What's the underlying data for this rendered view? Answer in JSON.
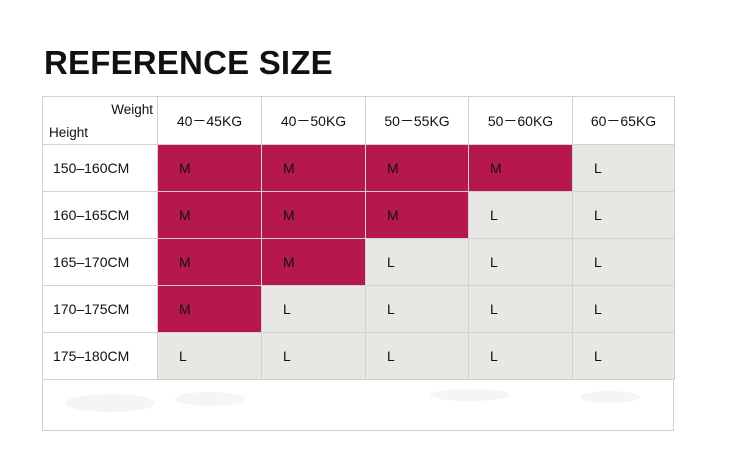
{
  "title": "REFERENCE SIZE",
  "table": {
    "corner": {
      "weight_label": "Weight",
      "height_label": "Height"
    },
    "columns": [
      "40－45KG",
      "40－50KG",
      "50－55KG",
      "50－60KG",
      "60－65KG"
    ],
    "rows": [
      {
        "label": "150–160CM",
        "values": [
          "M",
          "M",
          "M",
          "M",
          "L"
        ]
      },
      {
        "label": "160–165CM",
        "values": [
          "M",
          "M",
          "M",
          "L",
          "L"
        ]
      },
      {
        "label": "165–170CM",
        "values": [
          "M",
          "M",
          "L",
          "L",
          "L"
        ]
      },
      {
        "label": "170–175CM",
        "values": [
          "M",
          "L",
          "L",
          "L",
          "L"
        ]
      },
      {
        "label": "175–180CM",
        "values": [
          "L",
          "L",
          "L",
          "L",
          "L"
        ]
      }
    ]
  },
  "colors": {
    "size_m": "#b5174e",
    "size_l": "#e8e7e3",
    "text": "#111111",
    "border": "#d2d2d2"
  }
}
